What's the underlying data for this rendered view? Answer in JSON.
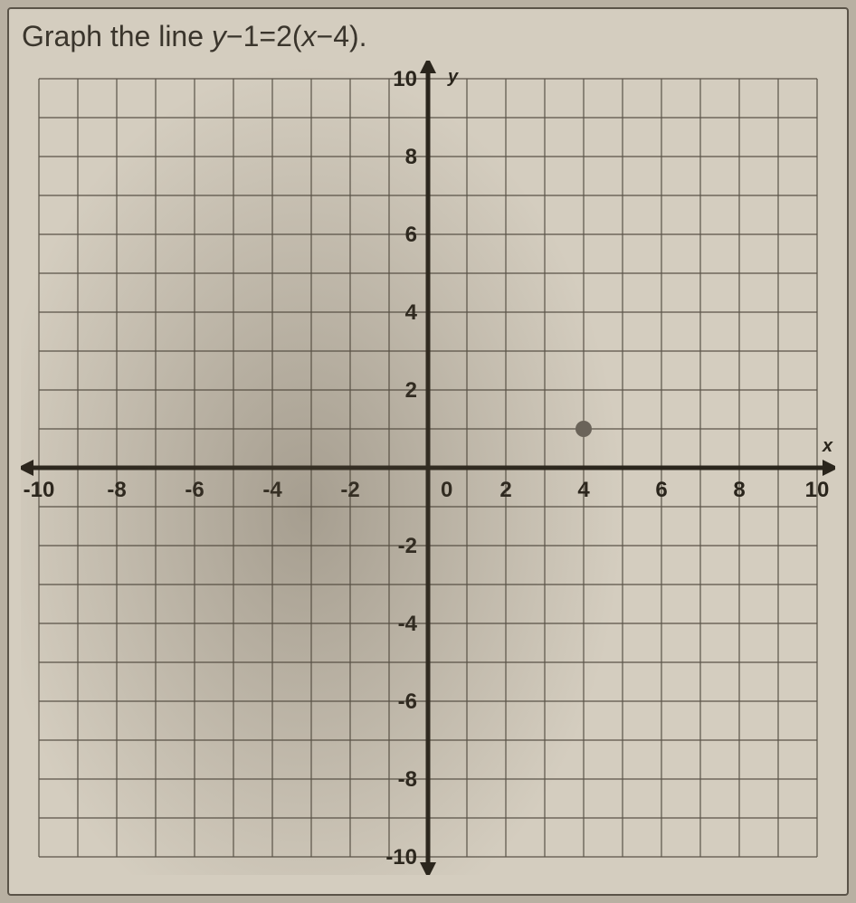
{
  "instruction": {
    "prefix": "Graph the line  ",
    "equation_parts": {
      "p1": "y",
      "p2": "−1=2(",
      "p3": "x",
      "p4": "−4)."
    }
  },
  "graph": {
    "type": "coordinate-grid",
    "background_color": "#d4cdbf",
    "grid_color": "#5a5348",
    "axis_color": "#2a251c",
    "label_color": "#2a251c",
    "xlim": [
      -10,
      10
    ],
    "ylim": [
      -10,
      10
    ],
    "grid_step": 1,
    "tick_step": 2,
    "tick_fontsize": 24,
    "axis_label_fontsize": 20,
    "x_ticks": [
      {
        "value": -10,
        "label": "-10"
      },
      {
        "value": -8,
        "label": "-8"
      },
      {
        "value": -6,
        "label": "-6"
      },
      {
        "value": -4,
        "label": "-4"
      },
      {
        "value": -2,
        "label": "-2"
      },
      {
        "value": 0,
        "label": "0"
      },
      {
        "value": 2,
        "label": "2"
      },
      {
        "value": 4,
        "label": "4"
      },
      {
        "value": 6,
        "label": "6"
      },
      {
        "value": 8,
        "label": "8"
      },
      {
        "value": 10,
        "label": "10"
      }
    ],
    "y_ticks": [
      {
        "value": 10,
        "label": "10"
      },
      {
        "value": 8,
        "label": "8"
      },
      {
        "value": 6,
        "label": "6"
      },
      {
        "value": 4,
        "label": "4"
      },
      {
        "value": 2,
        "label": "2"
      },
      {
        "value": -2,
        "label": "-2"
      },
      {
        "value": -4,
        "label": "-4"
      },
      {
        "value": -6,
        "label": "-6"
      },
      {
        "value": -8,
        "label": "-8"
      },
      {
        "value": -10,
        "label": "-10"
      }
    ],
    "x_axis_label": "x",
    "y_axis_label": "y",
    "plotted_points": [
      {
        "x": 4,
        "y": 1,
        "color": "#6b645a",
        "radius": 9
      }
    ]
  }
}
